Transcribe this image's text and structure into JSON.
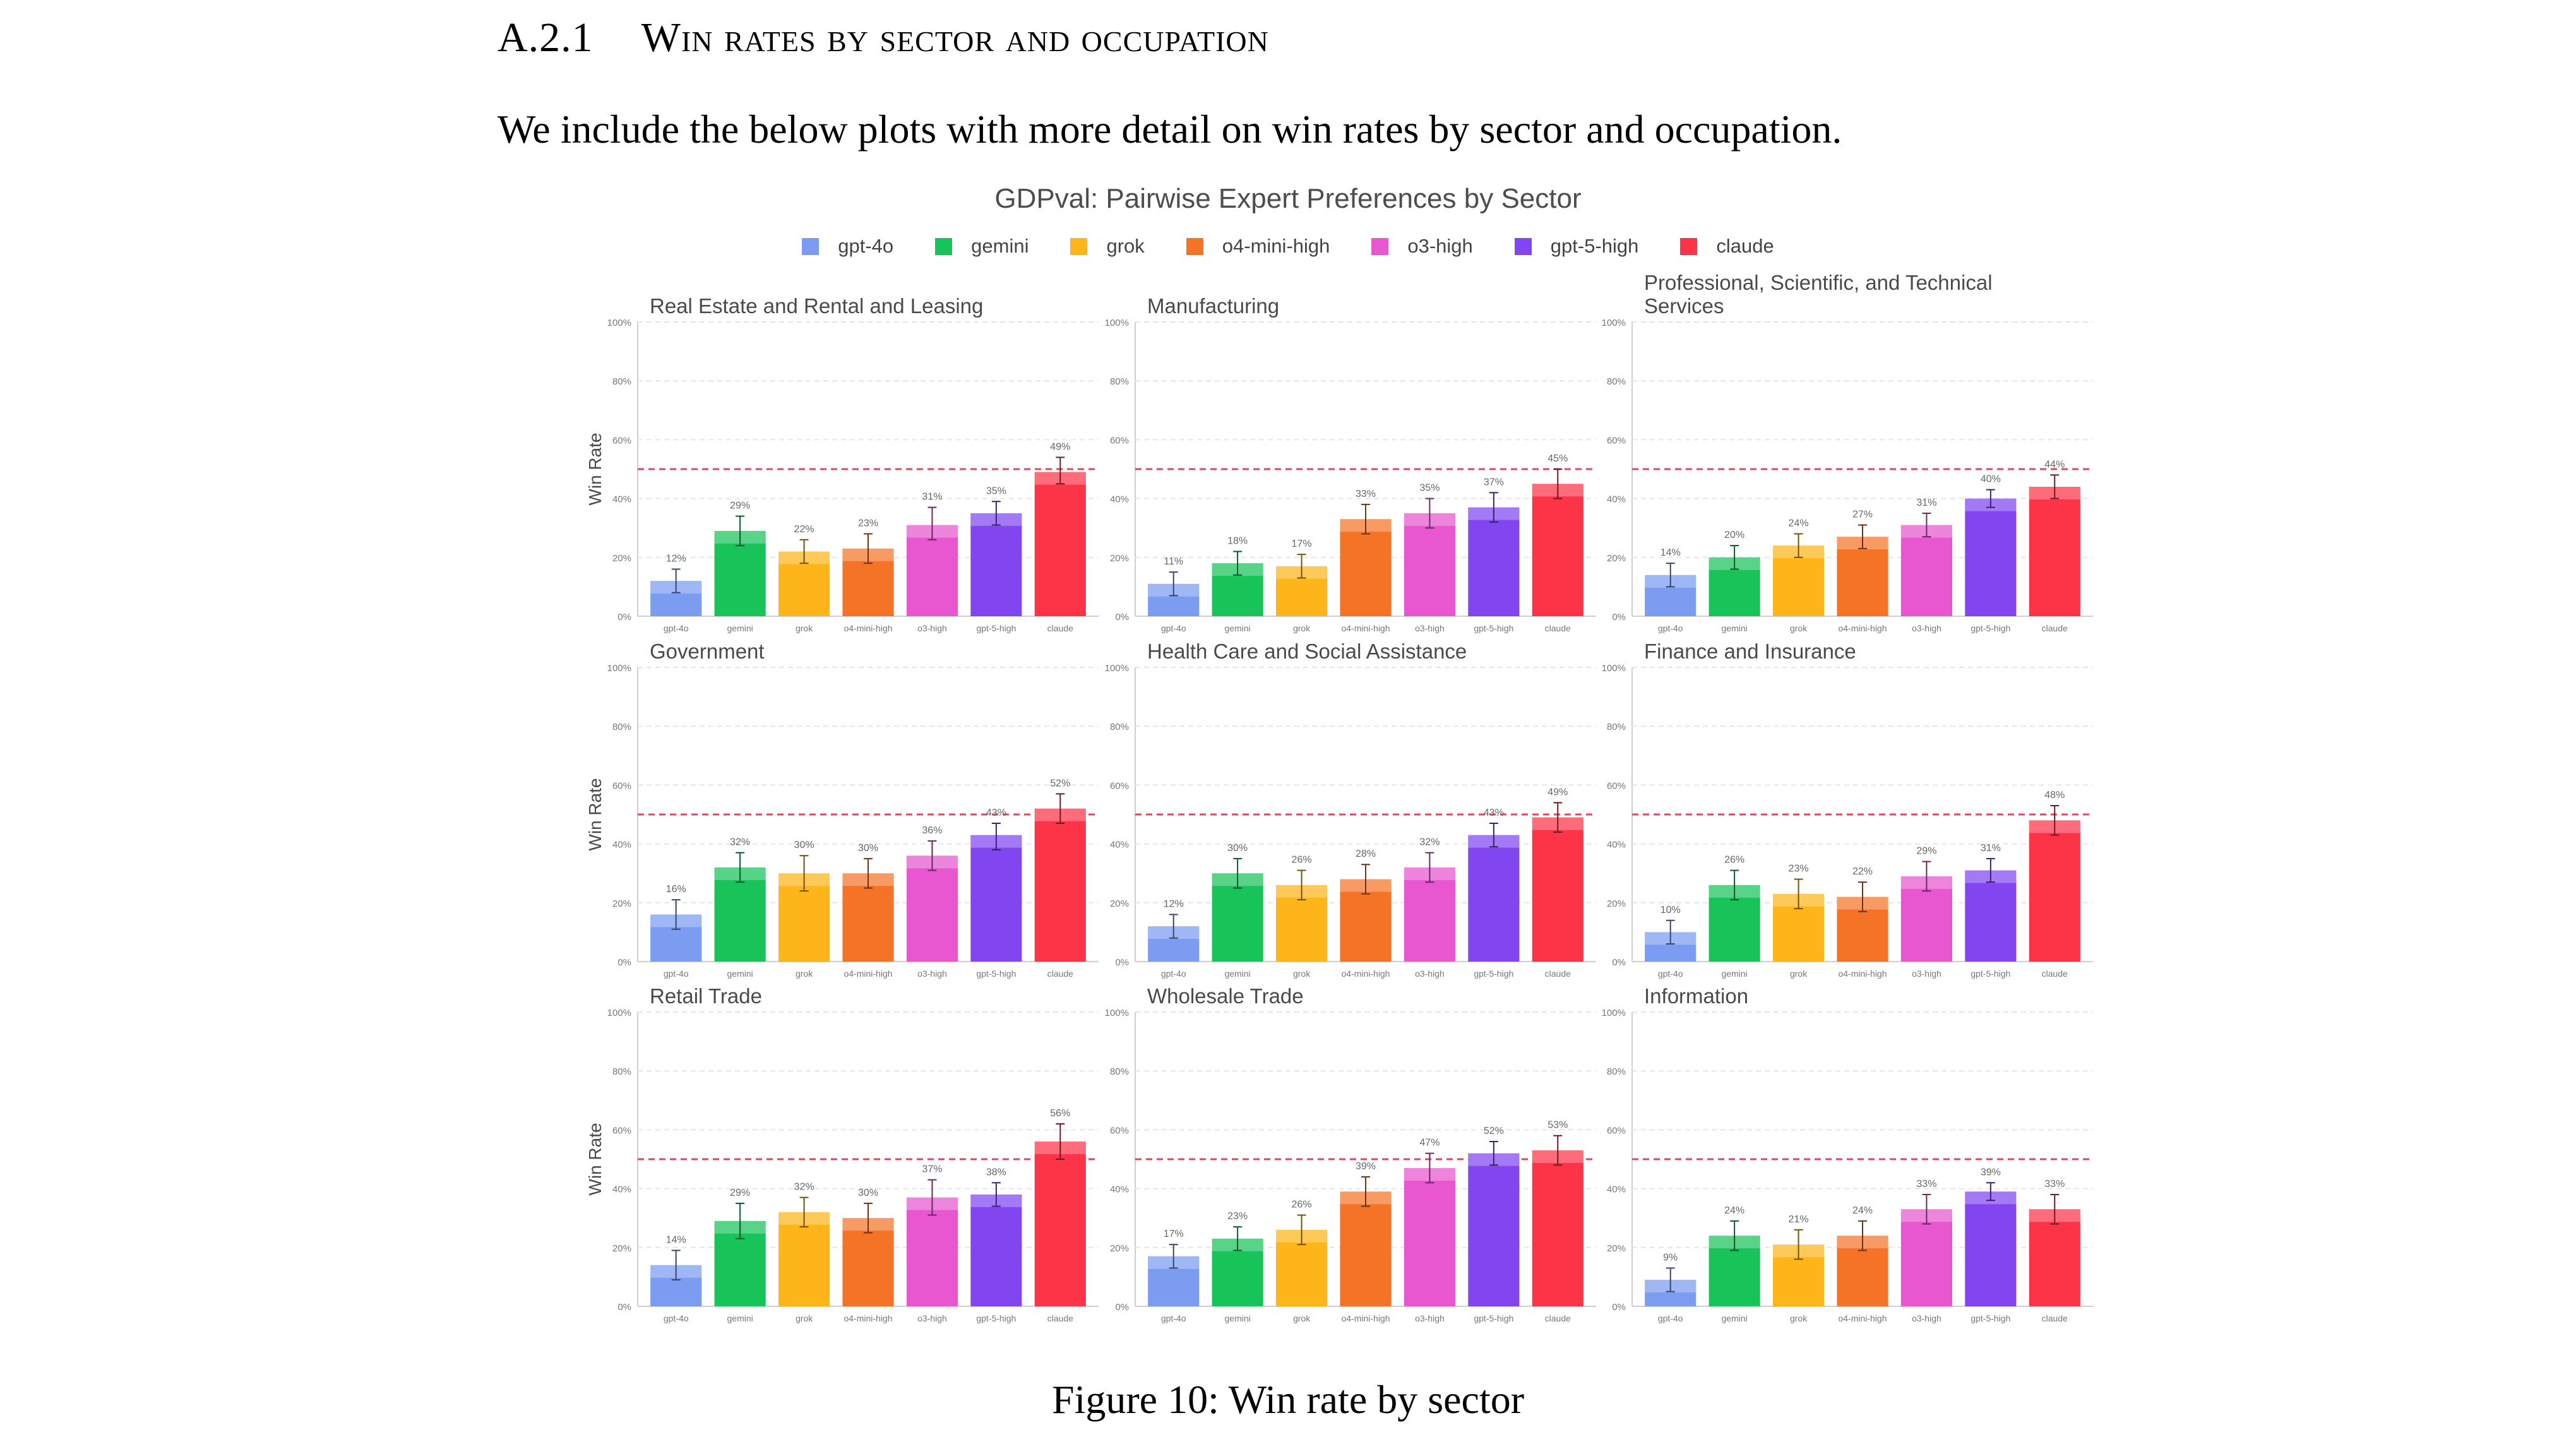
{
  "section": {
    "number": "A.2.1",
    "title": "Win rates by sector and occupation"
  },
  "intro_text": "We include the below plots with more detail on win rates by sector and occupation.",
  "figure_title": "GDPval: Pairwise Expert Preferences by Sector",
  "legend": [
    {
      "name": "gpt-4o",
      "color": "#7b9cf1"
    },
    {
      "name": "gemini",
      "color": "#18c35a"
    },
    {
      "name": "grok",
      "color": "#fdb519"
    },
    {
      "name": "o4-mini-high",
      "color": "#f47327"
    },
    {
      "name": "o3-high",
      "color": "#e857cf"
    },
    {
      "name": "gpt-5-high",
      "color": "#8246f1"
    },
    {
      "name": "claude",
      "color": "#fd3448"
    }
  ],
  "caption": "Figure 10: Win rate by sector",
  "chart_data": [
    {
      "type": "bar",
      "title": "Real Estate and Rental and Leasing",
      "ylabel": "Win Rate",
      "categories": [
        "gpt-4o",
        "gemini",
        "grok",
        "o4-mini-high",
        "o3-high",
        "gpt-5-high",
        "claude"
      ],
      "values": [
        12,
        29,
        22,
        23,
        31,
        35,
        49
      ],
      "value_labels": [
        "12%",
        "29%",
        "22%",
        "23%",
        "31%",
        "35%",
        "49%"
      ],
      "error_low": [
        8,
        24,
        18,
        18,
        26,
        31,
        45
      ],
      "error_high": [
        16,
        34,
        26,
        28,
        37,
        39,
        54
      ],
      "ylim": [
        0,
        100
      ],
      "reference_line": 50
    },
    {
      "type": "bar",
      "title": "Manufacturing",
      "ylabel": "",
      "categories": [
        "gpt-4o",
        "gemini",
        "grok",
        "o4-mini-high",
        "o3-high",
        "gpt-5-high",
        "claude"
      ],
      "values": [
        11,
        18,
        17,
        33,
        35,
        37,
        45
      ],
      "value_labels": [
        "11%",
        "18%",
        "17%",
        "33%",
        "35%",
        "37%",
        "45%"
      ],
      "error_low": [
        7,
        14,
        13,
        28,
        30,
        32,
        40
      ],
      "error_high": [
        15,
        22,
        21,
        38,
        40,
        42,
        50
      ],
      "ylim": [
        0,
        100
      ],
      "reference_line": 50
    },
    {
      "type": "bar",
      "title": "Professional, Scientific, and Technical Services",
      "ylabel": "",
      "categories": [
        "gpt-4o",
        "gemini",
        "grok",
        "o4-mini-high",
        "o3-high",
        "gpt-5-high",
        "claude"
      ],
      "values": [
        14,
        20,
        24,
        27,
        31,
        40,
        44
      ],
      "value_labels": [
        "14%",
        "20%",
        "24%",
        "27%",
        "31%",
        "40%",
        "44%"
      ],
      "error_low": [
        10,
        16,
        20,
        23,
        27,
        37,
        40
      ],
      "error_high": [
        18,
        24,
        28,
        31,
        35,
        43,
        48
      ],
      "ylim": [
        0,
        100
      ],
      "reference_line": 50
    },
    {
      "type": "bar",
      "title": "Government",
      "ylabel": "Win Rate",
      "categories": [
        "gpt-4o",
        "gemini",
        "grok",
        "o4-mini-high",
        "o3-high",
        "gpt-5-high",
        "claude"
      ],
      "values": [
        16,
        32,
        30,
        30,
        36,
        43,
        52
      ],
      "value_labels": [
        "16%",
        "32%",
        "30%",
        "30%",
        "36%",
        "43%",
        "52%"
      ],
      "error_low": [
        11,
        27,
        24,
        25,
        31,
        38,
        47
      ],
      "error_high": [
        21,
        37,
        36,
        35,
        41,
        47,
        57
      ],
      "ylim": [
        0,
        100
      ],
      "reference_line": 50
    },
    {
      "type": "bar",
      "title": "Health Care and Social Assistance",
      "ylabel": "",
      "categories": [
        "gpt-4o",
        "gemini",
        "grok",
        "o4-mini-high",
        "o3-high",
        "gpt-5-high",
        "claude"
      ],
      "values": [
        12,
        30,
        26,
        28,
        32,
        43,
        49
      ],
      "value_labels": [
        "12%",
        "30%",
        "26%",
        "28%",
        "32%",
        "43%",
        "49%"
      ],
      "error_low": [
        8,
        25,
        21,
        23,
        27,
        39,
        44
      ],
      "error_high": [
        16,
        35,
        31,
        33,
        37,
        47,
        54
      ],
      "ylim": [
        0,
        100
      ],
      "reference_line": 50
    },
    {
      "type": "bar",
      "title": "Finance and Insurance",
      "ylabel": "",
      "categories": [
        "gpt-4o",
        "gemini",
        "grok",
        "o4-mini-high",
        "o3-high",
        "gpt-5-high",
        "claude"
      ],
      "values": [
        10,
        26,
        23,
        22,
        29,
        31,
        48
      ],
      "value_labels": [
        "10%",
        "26%",
        "23%",
        "22%",
        "29%",
        "31%",
        "48%"
      ],
      "error_low": [
        6,
        21,
        18,
        17,
        24,
        27,
        43
      ],
      "error_high": [
        14,
        31,
        28,
        27,
        34,
        35,
        53
      ],
      "ylim": [
        0,
        100
      ],
      "reference_line": 50
    },
    {
      "type": "bar",
      "title": "Retail Trade",
      "ylabel": "Win Rate",
      "categories": [
        "gpt-4o",
        "gemini",
        "grok",
        "o4-mini-high",
        "o3-high",
        "gpt-5-high",
        "claude"
      ],
      "values": [
        14,
        29,
        32,
        30,
        37,
        38,
        56
      ],
      "value_labels": [
        "14%",
        "29%",
        "32%",
        "30%",
        "37%",
        "38%",
        "56%"
      ],
      "error_low": [
        9,
        23,
        27,
        25,
        31,
        34,
        50
      ],
      "error_high": [
        19,
        35,
        37,
        35,
        43,
        42,
        62
      ],
      "ylim": [
        0,
        100
      ],
      "reference_line": 50
    },
    {
      "type": "bar",
      "title": "Wholesale Trade",
      "ylabel": "",
      "categories": [
        "gpt-4o",
        "gemini",
        "grok",
        "o4-mini-high",
        "o3-high",
        "gpt-5-high",
        "claude"
      ],
      "values": [
        17,
        23,
        26,
        39,
        47,
        52,
        53
      ],
      "value_labels": [
        "17%",
        "23%",
        "26%",
        "39%",
        "47%",
        "52%",
        "53%"
      ],
      "error_low": [
        13,
        19,
        21,
        34,
        42,
        48,
        48
      ],
      "error_high": [
        21,
        27,
        31,
        44,
        52,
        56,
        58
      ],
      "ylim": [
        0,
        100
      ],
      "reference_line": 50
    },
    {
      "type": "bar",
      "title": "Information",
      "ylabel": "",
      "categories": [
        "gpt-4o",
        "gemini",
        "grok",
        "o4-mini-high",
        "o3-high",
        "gpt-5-high",
        "claude"
      ],
      "values": [
        9,
        24,
        21,
        24,
        33,
        39,
        33
      ],
      "value_labels": [
        "9%",
        "24%",
        "21%",
        "24%",
        "33%",
        "39%",
        "33%"
      ],
      "error_low": [
        5,
        19,
        16,
        19,
        28,
        36,
        28
      ],
      "error_high": [
        13,
        29,
        26,
        29,
        38,
        42,
        38
      ],
      "ylim": [
        0,
        100
      ],
      "reference_line": 50
    }
  ],
  "yticks": [
    0,
    20,
    40,
    60,
    80,
    100
  ],
  "ytick_labels": [
    "0%",
    "20%",
    "40%",
    "60%",
    "80%",
    "100%"
  ]
}
